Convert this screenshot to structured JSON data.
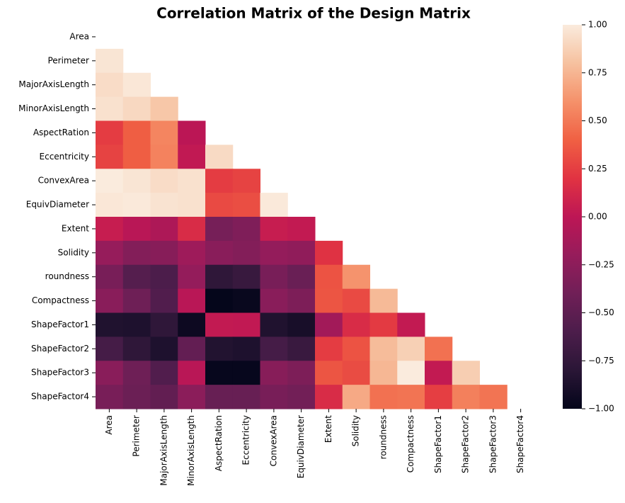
{
  "chart_data": {
    "type": "heatmap",
    "title": "Correlation Matrix of the Design Matrix",
    "categories": [
      "Area",
      "Perimeter",
      "MajorAxisLength",
      "MinorAxisLength",
      "AspectRation",
      "Eccentricity",
      "ConvexArea",
      "EquivDiameter",
      "Extent",
      "Solidity",
      "roundness",
      "Compactness",
      "ShapeFactor1",
      "ShapeFactor2",
      "ShapeFactor3",
      "ShapeFactor4"
    ],
    "values": [
      [
        null,
        null,
        null,
        null,
        null,
        null,
        null,
        null,
        null,
        null,
        null,
        null,
        null,
        null,
        null,
        null
      ],
      [
        0.97,
        null,
        null,
        null,
        null,
        null,
        null,
        null,
        null,
        null,
        null,
        null,
        null,
        null,
        null,
        null
      ],
      [
        0.93,
        0.98,
        null,
        null,
        null,
        null,
        null,
        null,
        null,
        null,
        null,
        null,
        null,
        null,
        null,
        null
      ],
      [
        0.95,
        0.91,
        0.83,
        null,
        null,
        null,
        null,
        null,
        null,
        null,
        null,
        null,
        null,
        null,
        null,
        null
      ],
      [
        0.24,
        0.39,
        0.55,
        -0.01,
        null,
        null,
        null,
        null,
        null,
        null,
        null,
        null,
        null,
        null,
        null,
        null
      ],
      [
        0.27,
        0.39,
        0.54,
        0.02,
        0.92,
        null,
        null,
        null,
        null,
        null,
        null,
        null,
        null,
        null,
        null,
        null
      ],
      [
        1.0,
        0.97,
        0.93,
        0.95,
        0.24,
        0.27,
        null,
        null,
        null,
        null,
        null,
        null,
        null,
        null,
        null,
        null
      ],
      [
        0.98,
        0.99,
        0.96,
        0.95,
        0.3,
        0.32,
        0.99,
        null,
        null,
        null,
        null,
        null,
        null,
        null,
        null,
        null
      ],
      [
        0.05,
        -0.02,
        -0.08,
        0.15,
        -0.37,
        -0.32,
        0.05,
        0.03,
        null,
        null,
        null,
        null,
        null,
        null,
        null,
        null
      ],
      [
        -0.2,
        -0.3,
        -0.28,
        -0.16,
        -0.27,
        -0.3,
        -0.21,
        -0.23,
        0.19,
        null,
        null,
        null,
        null,
        null,
        null,
        null
      ],
      [
        -0.36,
        -0.55,
        -0.6,
        -0.21,
        -0.77,
        -0.72,
        -0.36,
        -0.44,
        0.34,
        0.61,
        null,
        null,
        null,
        null,
        null,
        null
      ],
      [
        -0.27,
        -0.41,
        -0.57,
        -0.02,
        -0.99,
        -0.97,
        -0.27,
        -0.33,
        0.35,
        0.3,
        0.77,
        null,
        null,
        null,
        null,
        null
      ],
      [
        -0.85,
        -0.86,
        -0.77,
        -0.95,
        0.03,
        0.02,
        -0.85,
        -0.89,
        -0.14,
        0.15,
        0.23,
        0.03,
        null,
        null,
        null,
        null
      ],
      [
        -0.64,
        -0.77,
        -0.86,
        -0.47,
        -0.84,
        -0.86,
        -0.64,
        -0.71,
        0.24,
        0.34,
        0.78,
        0.87,
        0.47,
        null,
        null,
        null
      ],
      [
        -0.27,
        -0.41,
        -0.57,
        -0.02,
        -0.98,
        -0.98,
        -0.28,
        -0.33,
        0.35,
        0.31,
        0.76,
        1.0,
        0.03,
        0.86,
        null,
        null
      ],
      [
        -0.36,
        -0.43,
        -0.48,
        -0.26,
        -0.45,
        -0.45,
        -0.36,
        -0.39,
        0.15,
        0.7,
        0.47,
        0.48,
        0.25,
        0.53,
        0.48,
        null
      ]
    ],
    "colors": [
      "#03051a",
      "#2a1636",
      "#4c1d4b",
      "#701f57",
      "#961c5b",
      "#bd1655",
      "#e13342",
      "#f06043",
      "#f5916a",
      "#f6c19f",
      "#faebdd"
    ],
    "clim": [
      -1,
      1
    ],
    "cticks": [
      {
        "value": -1,
        "label": "−1.00"
      },
      {
        "value": -0.75,
        "label": "−0.75"
      },
      {
        "value": -0.5,
        "label": "−0.50"
      },
      {
        "value": -0.25,
        "label": "−0.25"
      },
      {
        "value": 0,
        "label": "0.00"
      },
      {
        "value": 0.25,
        "label": "0.25"
      },
      {
        "value": 0.5,
        "label": "0.50"
      },
      {
        "value": 0.75,
        "label": "0.75"
      },
      {
        "value": 1,
        "label": "1.00"
      }
    ]
  }
}
